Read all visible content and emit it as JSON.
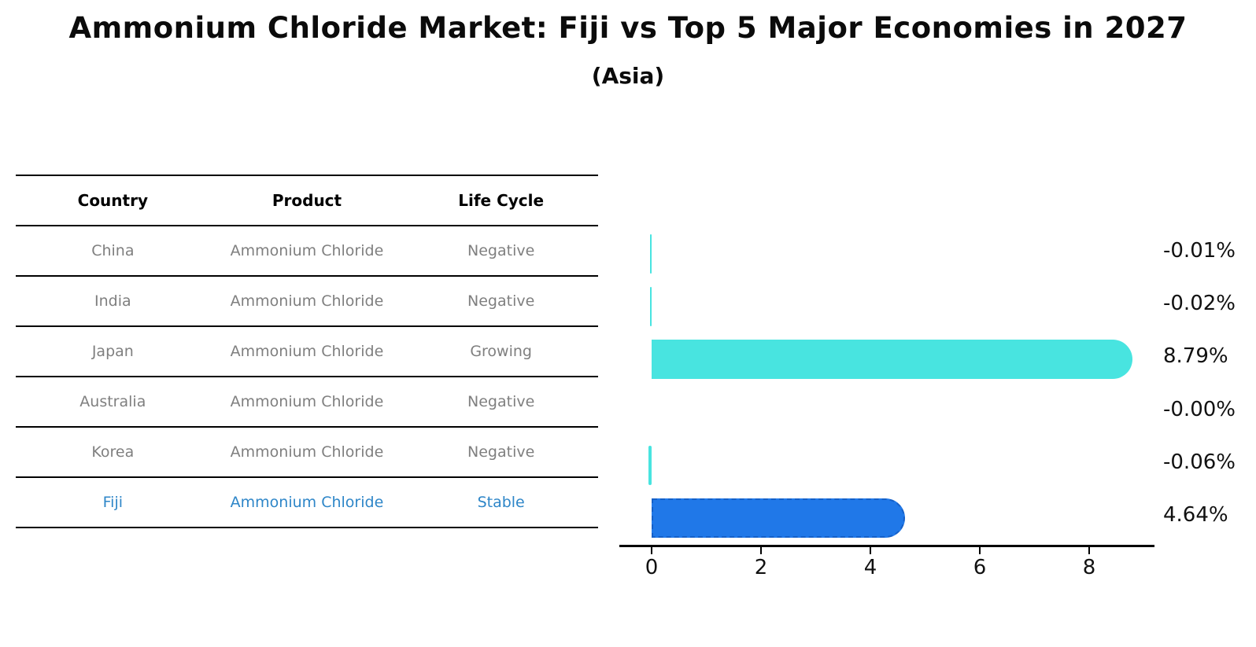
{
  "title": "Ammonium Chloride Market: Fiji vs Top 5 Major Economies in 2027",
  "subtitle": "(Asia)",
  "table": {
    "headers": [
      "Country",
      "Product",
      "Life Cycle"
    ],
    "rows": [
      {
        "country": "China",
        "product": "Ammonium Chloride",
        "life_cycle": "Negative",
        "highlight": false
      },
      {
        "country": "India",
        "product": "Ammonium Chloride",
        "life_cycle": "Negative",
        "highlight": false
      },
      {
        "country": "Japan",
        "product": "Ammonium Chloride",
        "life_cycle": "Growing",
        "highlight": false
      },
      {
        "country": "Australia",
        "product": "Ammonium Chloride",
        "life_cycle": "Negative",
        "highlight": false
      },
      {
        "country": "Korea",
        "product": "Ammonium Chloride",
        "life_cycle": "Negative",
        "highlight": false
      },
      {
        "country": "Fiji",
        "product": "Ammonium Chloride",
        "life_cycle": "Stable",
        "highlight": true
      }
    ]
  },
  "chart_data": {
    "type": "bar",
    "orientation": "horizontal",
    "title": "Ammonium Chloride Market: Fiji vs Top 5 Major Economies in 2027 (Asia)",
    "categories": [
      "China",
      "India",
      "Japan",
      "Australia",
      "Korea",
      "Fiji"
    ],
    "values": [
      -0.01,
      -0.02,
      8.79,
      -0.0,
      -0.06,
      4.64
    ],
    "value_labels": [
      "-0.01%",
      "-0.02%",
      "8.79%",
      "-0.00%",
      "-0.06%",
      "4.64%"
    ],
    "xticks": [
      0,
      2,
      4,
      6,
      8
    ],
    "xlim": [
      -0.5,
      9.2
    ],
    "grid": false,
    "legend": false,
    "highlight_index": 5,
    "colors": {
      "bar": "#48e4e0",
      "highlight_bar": "#2078e8",
      "highlight_border": "#1560c8",
      "highlight_text": "#2e86c8",
      "text": "#111111",
      "muted_text": "#7f7f7f"
    }
  }
}
